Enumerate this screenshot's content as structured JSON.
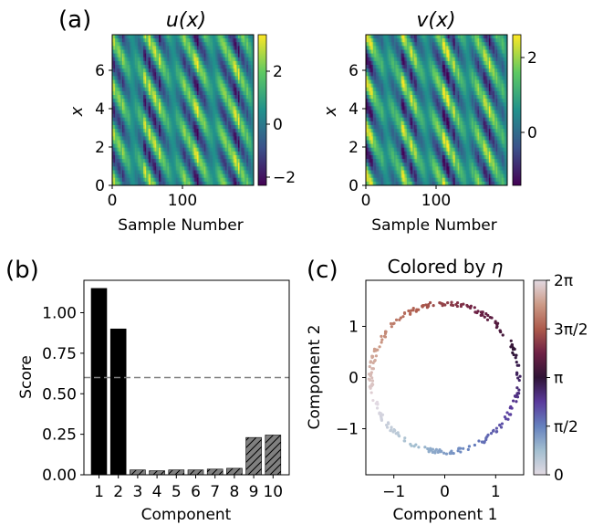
{
  "panel_labels": {
    "a": "(a)",
    "b": "(b)",
    "c": "(c)"
  },
  "heatmaps": [
    {
      "title": "u(x)",
      "title_var": "u",
      "xlabel": "Sample Number",
      "ylabel": "x",
      "x_ticks": [
        "0",
        "100"
      ],
      "y_ticks": [
        "0",
        "2",
        "4",
        "6"
      ],
      "colorbar_ticks": [
        "2",
        "0",
        "−2"
      ],
      "colorbar_range": [
        -2.4,
        3.3
      ]
    },
    {
      "title": "v(x)",
      "title_var": "v",
      "xlabel": "Sample Number",
      "ylabel": "x",
      "x_ticks": [
        "0",
        "100"
      ],
      "y_ticks": [
        "0",
        "2",
        "4",
        "6"
      ],
      "colorbar_ticks": [
        "2",
        "0"
      ],
      "colorbar_range": [
        -1.2,
        2.6
      ]
    }
  ],
  "colors": {
    "bar_solid": "#000000",
    "bar_hatched": "#808080",
    "threshold": "#808080",
    "viridis": [
      "#440154",
      "#3b528b",
      "#21918c",
      "#5ec962",
      "#fde725"
    ],
    "twilight": [
      "#e2d9e2",
      "#a3bfd0",
      "#6581be",
      "#5a3a9c",
      "#2f1436",
      "#6e2145",
      "#ad5a4b",
      "#cc9a86",
      "#e2d9e2"
    ]
  },
  "chart_data": [
    {
      "type": "heatmap",
      "title": "u(x)",
      "xlabel": "Sample Number",
      "ylabel": "x",
      "xlim": [
        0,
        200
      ],
      "ylim": [
        0,
        7.85
      ],
      "colorbar_ticks": [
        -2,
        0,
        2
      ]
    },
    {
      "type": "heatmap",
      "title": "v(x)",
      "xlabel": "Sample Number",
      "ylabel": "x",
      "xlim": [
        0,
        200
      ],
      "ylim": [
        0,
        7.85
      ],
      "colorbar_ticks": [
        0,
        2
      ]
    },
    {
      "type": "bar",
      "xlabel": "Component",
      "ylabel": "Score",
      "categories": [
        "1",
        "2",
        "3",
        "4",
        "5",
        "6",
        "7",
        "8",
        "9",
        "10"
      ],
      "values": [
        1.15,
        0.9,
        0.03,
        0.025,
        0.03,
        0.03,
        0.035,
        0.04,
        0.23,
        0.245
      ],
      "hatched": [
        false,
        false,
        true,
        true,
        true,
        true,
        true,
        true,
        true,
        true
      ],
      "threshold": 0.6,
      "ylim": [
        0,
        1.2
      ],
      "y_ticks": [
        "0.00",
        "0.25",
        "0.50",
        "0.75",
        "1.00"
      ]
    },
    {
      "type": "scatter",
      "title": "Colored by η",
      "title_prefix": "Colored by",
      "title_symbol": "η",
      "xlabel": "Component 1",
      "ylabel": "Component 2",
      "xlim": [
        -1.55,
        1.55
      ],
      "ylim": [
        -1.9,
        1.9
      ],
      "x_ticks": [
        "−1",
        "0",
        "1"
      ],
      "y_ticks": [
        "−1",
        "0",
        "1"
      ],
      "radius": 1.45,
      "colorbar_ticks": [
        "0",
        "π/2",
        "π",
        "3π/2",
        "2π"
      ],
      "color_range": [
        0,
        6.2832
      ]
    }
  ]
}
